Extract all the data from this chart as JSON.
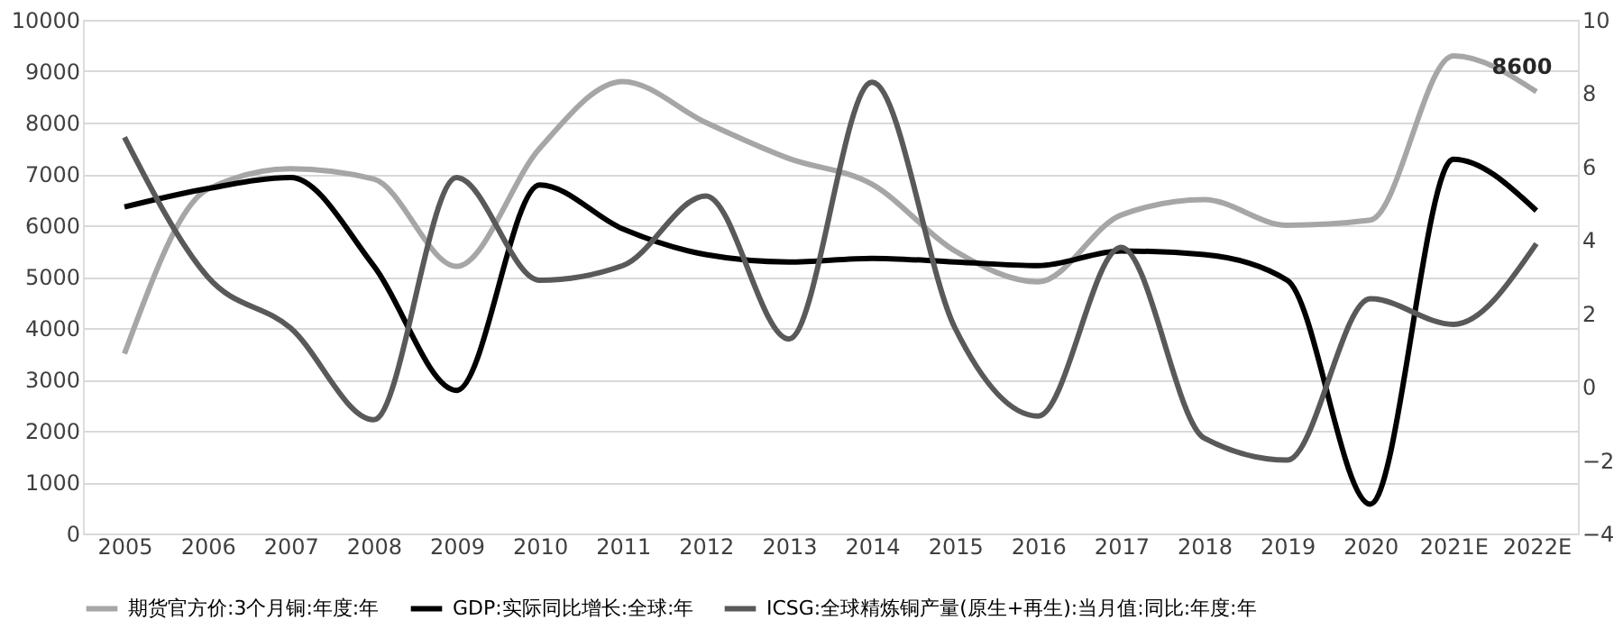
{
  "chart_data": {
    "type": "line",
    "categories": [
      "2005",
      "2006",
      "2007",
      "2008",
      "2009",
      "2010",
      "2011",
      "2012",
      "2013",
      "2014",
      "2015",
      "2016",
      "2017",
      "2018",
      "2019",
      "2020",
      "2021E",
      "2022E"
    ],
    "series": [
      {
        "name": "期货官方价:3个月铜:年度:年",
        "color": "#a6a6a6",
        "values": [
          3500,
          6700,
          7100,
          6900,
          5200,
          7500,
          8800,
          8000,
          7300,
          6800,
          5500,
          4900,
          6200,
          6500,
          6000,
          6100,
          9300,
          8600
        ]
      },
      {
        "name": "GDP:实际同比增长:全球:年",
        "color": "#000000",
        "axis": "y2",
        "values": [
          4.9,
          5.4,
          5.7,
          3.3,
          -0.1,
          5.5,
          4.3,
          3.6,
          3.4,
          3.5,
          3.4,
          3.3,
          3.7,
          3.6,
          2.9,
          -3.2,
          6.2,
          4.8
        ]
      },
      {
        "name": "ICSG:全球精炼铜产量(原生+再生):当月值:同比:年度:年",
        "color": "#595959",
        "axis": "y2",
        "values": [
          6.8,
          3.0,
          1.6,
          -0.9,
          5.7,
          2.9,
          3.3,
          5.2,
          1.3,
          8.3,
          1.6,
          -0.8,
          3.8,
          -1.4,
          -2.0,
          2.4,
          1.7,
          3.9
        ]
      }
    ],
    "ylim": [
      0,
      10000
    ],
    "yticks": [
      0,
      1000,
      2000,
      3000,
      4000,
      5000,
      6000,
      7000,
      8000,
      9000,
      10000
    ],
    "y2lim": [
      -4,
      10
    ],
    "y2ticks": [
      -4,
      -2,
      0,
      2,
      4,
      6,
      8,
      10
    ],
    "annotations": [
      {
        "text": "8600",
        "x": "2022E",
        "y": 8600
      }
    ],
    "grid": "y",
    "legend": "bottom",
    "line_style": "solid",
    "marker": "none"
  }
}
